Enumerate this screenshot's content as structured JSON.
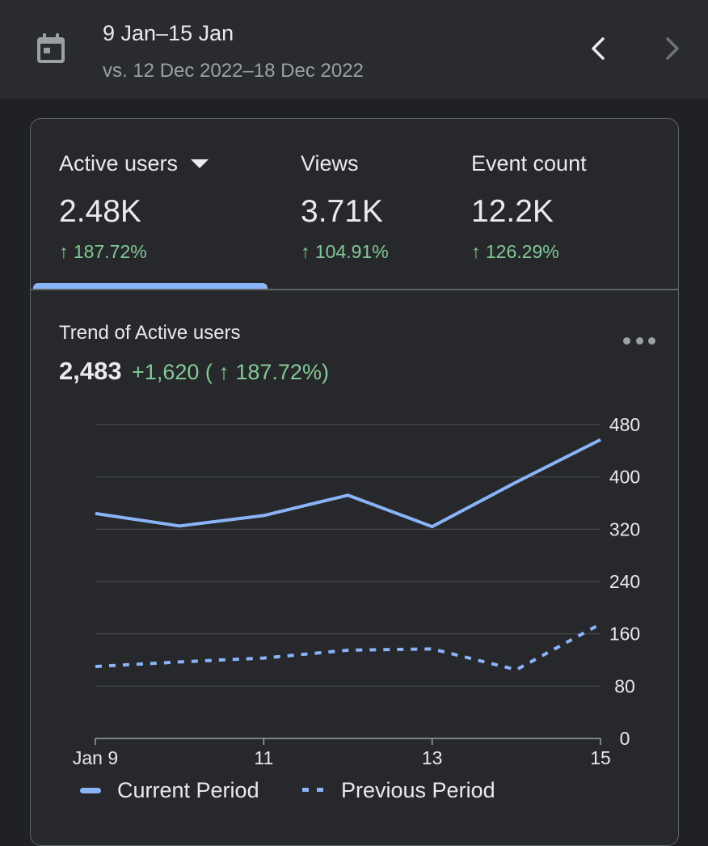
{
  "header": {
    "title": "9 Jan–15 Jan",
    "comparison": "vs. 12 Dec 2022–18 Dec 2022",
    "calendar_icon": "calendar-icon",
    "prev_icon": "chevron-left-icon",
    "next_icon": "chevron-right-icon"
  },
  "metrics": [
    {
      "label": "Active users",
      "value": "2.48K",
      "change": "↑ 187.72%",
      "selected": true
    },
    {
      "label": "Views",
      "value": "3.71K",
      "change": "↑ 104.91%",
      "selected": false
    },
    {
      "label": "Event count",
      "value": "12.2K",
      "change": "↑ 126.29%",
      "selected": false
    }
  ],
  "trend": {
    "title": "Trend of Active users",
    "total": "2,483",
    "delta": "+1,620 ( ↑ 187.72%)",
    "more_icon": "more-horizontal-icon"
  },
  "legend": {
    "current": "Current Period",
    "previous": "Previous Period"
  },
  "colors": {
    "accent": "#8ab4f8",
    "positive": "#81c995",
    "background": "#202124",
    "card": "#27282b"
  },
  "chart_data": {
    "type": "line",
    "x": [
      "Jan 9",
      "10",
      "11",
      "12",
      "13",
      "14",
      "15"
    ],
    "x_tick_labels": [
      "Jan 9",
      "11",
      "13",
      "15"
    ],
    "y_ticks": [
      0,
      80,
      160,
      240,
      320,
      400,
      480
    ],
    "ylim": [
      0,
      480
    ],
    "series": [
      {
        "name": "Current Period",
        "style": "solid",
        "values": [
          344,
          325,
          341,
          372,
          324,
          392,
          457
        ]
      },
      {
        "name": "Previous Period",
        "style": "dotted",
        "values": [
          110,
          117,
          123,
          135,
          137,
          105,
          175
        ]
      }
    ],
    "grid": true,
    "legend_position": "bottom"
  }
}
